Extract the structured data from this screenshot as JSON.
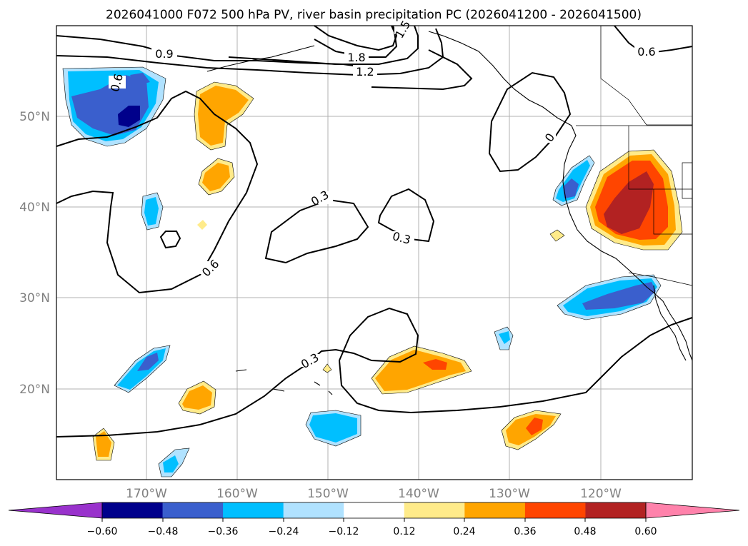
{
  "title": "2026041000 F072 500 hPa PV, river basin precipitation PC (2026041200 - 2026041500)",
  "lat_labels": [
    "50°N",
    "40°N",
    "30°N",
    "20°N"
  ],
  "lon_labels": [
    "170°W",
    "160°W",
    "150°W",
    "140°W",
    "130°W",
    "120°W"
  ],
  "colorbar": {
    "ticks": [
      "−0.60",
      "−0.48",
      "−0.36",
      "−0.24",
      "−0.12",
      "0.12",
      "0.24",
      "0.36",
      "0.48",
      "0.60"
    ],
    "colors": [
      "#9932cc",
      "#00008b",
      "#3a5fcd",
      "#00bfff",
      "#b0e2ff",
      "#ffffff",
      "#ffeb8a",
      "#ffa500",
      "#ff4500",
      "#b22222",
      "#ff82ab"
    ]
  },
  "contour_labels": [
    "0.9",
    "0.6",
    "1.8",
    "1.2",
    "1.5",
    "0.6",
    "0",
    "0.3",
    "0.3",
    "0.6",
    "0.3"
  ],
  "colors": {
    "blue_light": "#b0e2ff",
    "blue_mid": "#00bfff",
    "blue_dark": "#3a5fcd",
    "navy": "#00008b",
    "yellow": "#ffeb8a",
    "orange": "#ffa500",
    "red_orange": "#ff4500",
    "dark_red": "#b22222",
    "grid": "#b0b0b0",
    "tick_text": "#808080"
  }
}
